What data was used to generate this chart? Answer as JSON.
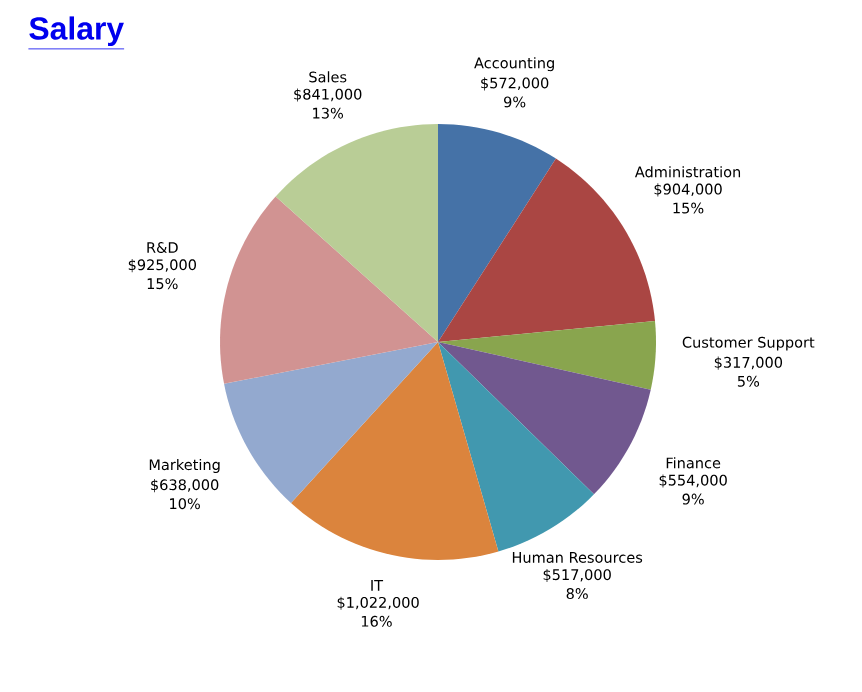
{
  "chart_data": {
    "type": "pie",
    "title": "Salary",
    "categories": [
      "Accounting",
      "Administration",
      "Customer Support",
      "Finance",
      "Human Resources",
      "IT",
      "Marketing",
      "R&D",
      "Sales"
    ],
    "values": [
      572000,
      904000,
      317000,
      554000,
      517000,
      1022000,
      638000,
      925000,
      841000
    ],
    "value_labels": [
      "$572,000 9%",
      "$904,000 15%",
      "$317,000 5%",
      "$554,000 9%",
      "$517,000 8%",
      "$1,022,000 16%",
      "$638,000 10%",
      "$925,000 15%",
      "$841,000 13%"
    ],
    "colors": [
      "#4572a7",
      "#aa4643",
      "#89a54e",
      "#71588f",
      "#4198af",
      "#db843d",
      "#93a9cf",
      "#d19392",
      "#b9cd96"
    ]
  }
}
